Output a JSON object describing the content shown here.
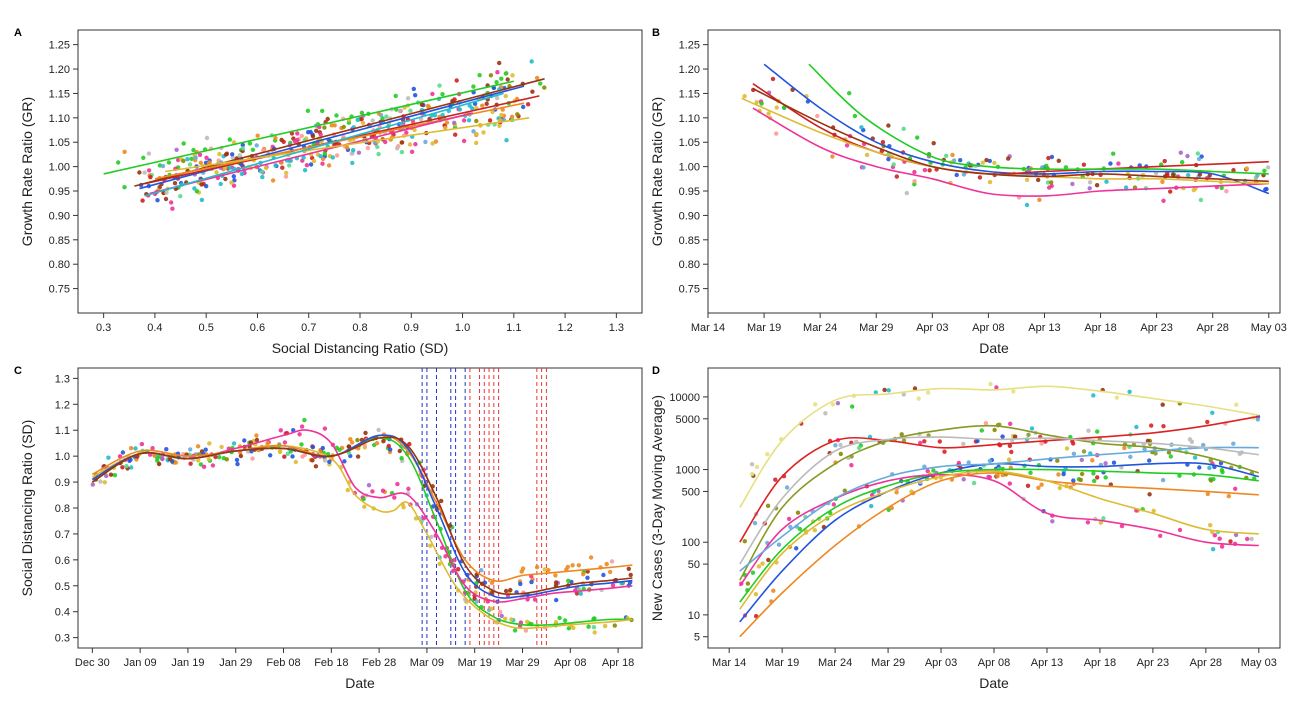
{
  "chart_data": [
    {
      "panel": "A",
      "type": "scatter",
      "xlabel": "Social Distancing Ratio (SD)",
      "ylabel": "Growth Rate Ratio (GR)",
      "xlim": [
        0.25,
        1.35
      ],
      "ylim": [
        0.7,
        1.28
      ],
      "xticks": [
        "0.3",
        "0.4",
        "0.5",
        "0.6",
        "0.7",
        "0.8",
        "0.9",
        "1.0",
        "1.1",
        "1.2",
        "1.3"
      ],
      "yticks": [
        "0.75",
        "0.80",
        "0.85",
        "0.90",
        "0.95",
        "1.00",
        "1.05",
        "1.10",
        "1.15",
        "1.20",
        "1.25"
      ],
      "series": [
        {
          "name": "fit-green",
          "color": "#22cc22",
          "x": [
            0.3,
            1.1
          ],
          "y": [
            0.985,
            1.175
          ]
        },
        {
          "name": "fit-blue",
          "color": "#2255dd",
          "x": [
            0.37,
            1.12
          ],
          "y": [
            0.955,
            1.165
          ]
        },
        {
          "name": "fit-red",
          "color": "#cc2222",
          "x": [
            0.38,
            1.15
          ],
          "y": [
            0.965,
            1.145
          ]
        },
        {
          "name": "fit-brown",
          "color": "#993311",
          "x": [
            0.36,
            1.16
          ],
          "y": [
            0.96,
            1.18
          ]
        },
        {
          "name": "fit-orange",
          "color": "#ee8822",
          "x": [
            0.4,
            1.12
          ],
          "y": [
            0.975,
            1.13
          ]
        },
        {
          "name": "fit-pink",
          "color": "#ee3399",
          "x": [
            0.39,
            1.02
          ],
          "y": [
            0.945,
            1.11
          ]
        },
        {
          "name": "fit-gold",
          "color": "#ddbb33",
          "x": [
            0.42,
            1.13
          ],
          "y": [
            0.99,
            1.1
          ]
        },
        {
          "name": "fit-cyan",
          "color": "#22bbcc",
          "x": [
            0.38,
            1.08
          ],
          "y": [
            0.94,
            1.15
          ]
        }
      ]
    },
    {
      "panel": "B",
      "type": "line",
      "xlabel": "Date",
      "ylabel": "Growth Rate Ratio (GR)",
      "xlim": [
        0,
        51
      ],
      "ylim": [
        0.7,
        1.28
      ],
      "xticks": [
        "Mar 14",
        "Mar 19",
        "Mar 24",
        "Mar 29",
        "Apr 03",
        "Apr 08",
        "Apr 13",
        "Apr 18",
        "Apr 23",
        "Apr 28",
        "May 03"
      ],
      "yticks": [
        "0.75",
        "0.80",
        "0.85",
        "0.90",
        "0.95",
        "1.00",
        "1.05",
        "1.10",
        "1.15",
        "1.20",
        "1.25"
      ],
      "series": [
        {
          "name": "blue",
          "color": "#2255dd",
          "x": [
            5,
            10,
            15,
            20,
            25,
            30,
            35,
            40,
            45,
            50
          ],
          "y": [
            1.21,
            1.12,
            1.05,
            1.01,
            0.99,
            0.985,
            0.99,
            0.99,
            0.985,
            0.945
          ]
        },
        {
          "name": "red",
          "color": "#cc2222",
          "x": [
            4,
            10,
            15,
            20,
            25,
            30,
            35,
            40,
            45,
            50
          ],
          "y": [
            1.17,
            1.08,
            1.03,
            1.0,
            0.985,
            0.99,
            0.995,
            1.0,
            1.005,
            1.01
          ]
        },
        {
          "name": "pink",
          "color": "#ee3399",
          "x": [
            4,
            10,
            15,
            20,
            25,
            30,
            35,
            40,
            45,
            50
          ],
          "y": [
            1.12,
            1.04,
            1.0,
            0.975,
            0.945,
            0.94,
            0.95,
            0.955,
            0.96,
            0.965
          ]
        },
        {
          "name": "green",
          "color": "#22cc22",
          "x": [
            9,
            14,
            20,
            25,
            30,
            35,
            40,
            45,
            50
          ],
          "y": [
            1.21,
            1.1,
            1.02,
            1.0,
            0.995,
            0.995,
            0.995,
            0.99,
            0.985
          ]
        },
        {
          "name": "gold",
          "color": "#ddbb33",
          "x": [
            3,
            10,
            15,
            20,
            25,
            30,
            35,
            40,
            45,
            50
          ],
          "y": [
            1.14,
            1.07,
            1.03,
            1.0,
            0.985,
            0.98,
            0.975,
            0.975,
            0.97,
            0.965
          ]
        },
        {
          "name": "brown",
          "color": "#993311",
          "x": [
            4,
            10,
            15,
            20,
            25,
            30,
            35,
            40,
            45,
            50
          ],
          "y": [
            1.16,
            1.09,
            1.04,
            1.0,
            0.985,
            0.98,
            0.985,
            0.98,
            0.975,
            0.97
          ]
        }
      ]
    },
    {
      "panel": "C",
      "type": "line",
      "xlabel": "Date",
      "ylabel": "Social Distancing Ratio (SD)",
      "xlim": [
        -3,
        115
      ],
      "ylim": [
        0.26,
        1.34
      ],
      "xticks": [
        "Dec 30",
        "Jan 09",
        "Jan 19",
        "Jan 29",
        "Feb 08",
        "Feb 18",
        "Feb 28",
        "Mar 09",
        "Mar 19",
        "Mar 29",
        "Apr 08",
        "Apr 18"
      ],
      "yticks": [
        "0.3",
        "0.4",
        "0.5",
        "0.6",
        "0.7",
        "0.8",
        "0.9",
        "1.0",
        "1.1",
        "1.2",
        "1.3"
      ],
      "vlines_blue": [
        69,
        70,
        72,
        75,
        76,
        78
      ],
      "vlines_red": [
        79,
        81,
        82,
        83,
        84,
        85,
        93,
        94,
        95
      ],
      "series": [
        {
          "name": "green",
          "color": "#22cc22",
          "x": [
            0,
            10,
            20,
            30,
            40,
            50,
            60,
            66,
            72,
            78,
            84,
            90,
            96,
            102,
            108,
            113
          ],
          "y": [
            0.9,
            1.01,
            0.99,
            1.02,
            1.03,
            1.0,
            1.07,
            1.0,
            0.75,
            0.48,
            0.38,
            0.35,
            0.35,
            0.36,
            0.37,
            0.37
          ]
        },
        {
          "name": "pink",
          "color": "#ee3399",
          "x": [
            0,
            10,
            20,
            30,
            40,
            45,
            50,
            55,
            60,
            66,
            72,
            78,
            84,
            90,
            96,
            102,
            108,
            113
          ],
          "y": [
            0.91,
            1.01,
            0.99,
            1.03,
            1.08,
            1.1,
            1.05,
            0.88,
            0.84,
            0.85,
            0.7,
            0.5,
            0.44,
            0.45,
            0.47,
            0.48,
            0.49,
            0.5
          ]
        },
        {
          "name": "gold",
          "color": "#ddbb33",
          "x": [
            0,
            10,
            20,
            30,
            40,
            50,
            55,
            60,
            63,
            66,
            70,
            76,
            82,
            88,
            94,
            100,
            108,
            113
          ],
          "y": [
            0.92,
            1.01,
            0.99,
            1.02,
            1.04,
            0.99,
            0.85,
            0.79,
            0.79,
            0.82,
            0.7,
            0.5,
            0.39,
            0.34,
            0.34,
            0.35,
            0.36,
            0.37
          ]
        },
        {
          "name": "orange",
          "color": "#ee8822",
          "x": [
            0,
            10,
            20,
            30,
            40,
            50,
            60,
            66,
            72,
            78,
            84,
            90,
            96,
            102,
            108,
            113
          ],
          "y": [
            0.93,
            1.02,
            1.0,
            1.02,
            1.04,
            1.0,
            1.08,
            1.02,
            0.82,
            0.6,
            0.52,
            0.54,
            0.55,
            0.56,
            0.57,
            0.58
          ]
        },
        {
          "name": "blue",
          "color": "#2255dd",
          "x": [
            0,
            10,
            20,
            30,
            40,
            50,
            60,
            66,
            72,
            78,
            84,
            90,
            96,
            102,
            108,
            113
          ],
          "y": [
            0.91,
            1.01,
            0.99,
            1.02,
            1.03,
            1.0,
            1.08,
            1.03,
            0.8,
            0.55,
            0.46,
            0.46,
            0.48,
            0.5,
            0.51,
            0.52
          ]
        },
        {
          "name": "brown",
          "color": "#993311",
          "x": [
            0,
            10,
            20,
            30,
            40,
            50,
            60,
            66,
            72,
            78,
            84,
            90,
            96,
            102,
            108,
            113
          ],
          "y": [
            0.9,
            1.01,
            0.99,
            1.02,
            1.03,
            1.0,
            1.07,
            1.04,
            0.84,
            0.58,
            0.48,
            0.47,
            0.49,
            0.51,
            0.52,
            0.53
          ]
        }
      ]
    },
    {
      "panel": "D",
      "type": "line",
      "xlabel": "Date",
      "ylabel": "New Cases (3-Day Moving Average)",
      "yscale": "log",
      "xlim": [
        -2,
        52
      ],
      "ylim": [
        3.5,
        25000
      ],
      "xticks": [
        "Mar 14",
        "Mar 19",
        "Mar 24",
        "Mar 29",
        "Apr 03",
        "Apr 08",
        "Apr 13",
        "Apr 18",
        "Apr 23",
        "Apr 28",
        "May 03"
      ],
      "yticks": [
        "5",
        "10",
        "50",
        "100",
        "500",
        "1000",
        "5000",
        "10000"
      ],
      "series": [
        {
          "name": "khaki",
          "color": "#e6e080",
          "x": [
            1,
            5,
            10,
            15,
            20,
            25,
            30,
            35,
            40,
            45,
            50
          ],
          "y": [
            300,
            2500,
            9000,
            11000,
            13000,
            12500,
            14000,
            12000,
            9500,
            7500,
            5600
          ]
        },
        {
          "name": "red",
          "color": "#dd2222",
          "x": [
            1,
            5,
            10,
            15,
            20,
            25,
            30,
            35,
            40,
            45,
            50
          ],
          "y": [
            100,
            800,
            2500,
            2500,
            2000,
            2200,
            2500,
            2800,
            3200,
            4000,
            5400
          ]
        },
        {
          "name": "olive",
          "color": "#889922",
          "x": [
            1,
            5,
            10,
            15,
            20,
            25,
            30,
            35,
            40,
            45,
            50
          ],
          "y": [
            30,
            300,
            1200,
            2500,
            3500,
            4000,
            3000,
            2300,
            2000,
            1500,
            900
          ]
        },
        {
          "name": "blue",
          "color": "#2255dd",
          "x": [
            1,
            5,
            10,
            15,
            20,
            25,
            30,
            35,
            40,
            45,
            50
          ],
          "y": [
            8,
            40,
            200,
            500,
            900,
            1200,
            1100,
            1100,
            1200,
            1200,
            800
          ]
        },
        {
          "name": "green",
          "color": "#22cc22",
          "x": [
            1,
            5,
            10,
            15,
            20,
            25,
            30,
            35,
            40,
            45,
            50
          ],
          "y": [
            15,
            80,
            300,
            600,
            900,
            1000,
            1000,
            950,
            900,
            850,
            700
          ]
        },
        {
          "name": "pink",
          "color": "#ee3399",
          "x": [
            1,
            5,
            10,
            15,
            20,
            25,
            30,
            35,
            40,
            45,
            50
          ],
          "y": [
            25,
            150,
            400,
            700,
            850,
            700,
            250,
            200,
            150,
            100,
            90
          ]
        },
        {
          "name": "orange",
          "color": "#ee8822",
          "x": [
            1,
            5,
            10,
            15,
            20,
            25,
            30,
            35,
            40,
            45,
            50
          ],
          "y": [
            5,
            20,
            90,
            300,
            700,
            900,
            700,
            600,
            550,
            500,
            450
          ]
        },
        {
          "name": "gold",
          "color": "#ddbb33",
          "x": [
            1,
            5,
            10,
            15,
            20,
            25,
            30,
            35,
            40,
            45,
            50
          ],
          "y": [
            12,
            70,
            250,
            500,
            800,
            950,
            700,
            400,
            250,
            150,
            130
          ]
        },
        {
          "name": "skyblue",
          "color": "#66aadd",
          "x": [
            1,
            5,
            10,
            15,
            20,
            25,
            30,
            35,
            40,
            45,
            50
          ],
          "y": [
            40,
            120,
            400,
            800,
            1100,
            1200,
            1400,
            1600,
            1800,
            2000,
            2000
          ]
        },
        {
          "name": "grey",
          "color": "#bbbbbb",
          "x": [
            1,
            5,
            10,
            15,
            20,
            25,
            30,
            35,
            40,
            45,
            50
          ],
          "y": [
            50,
            400,
            1800,
            2600,
            2800,
            2600,
            2700,
            2500,
            2300,
            2000,
            1600
          ]
        }
      ]
    }
  ]
}
